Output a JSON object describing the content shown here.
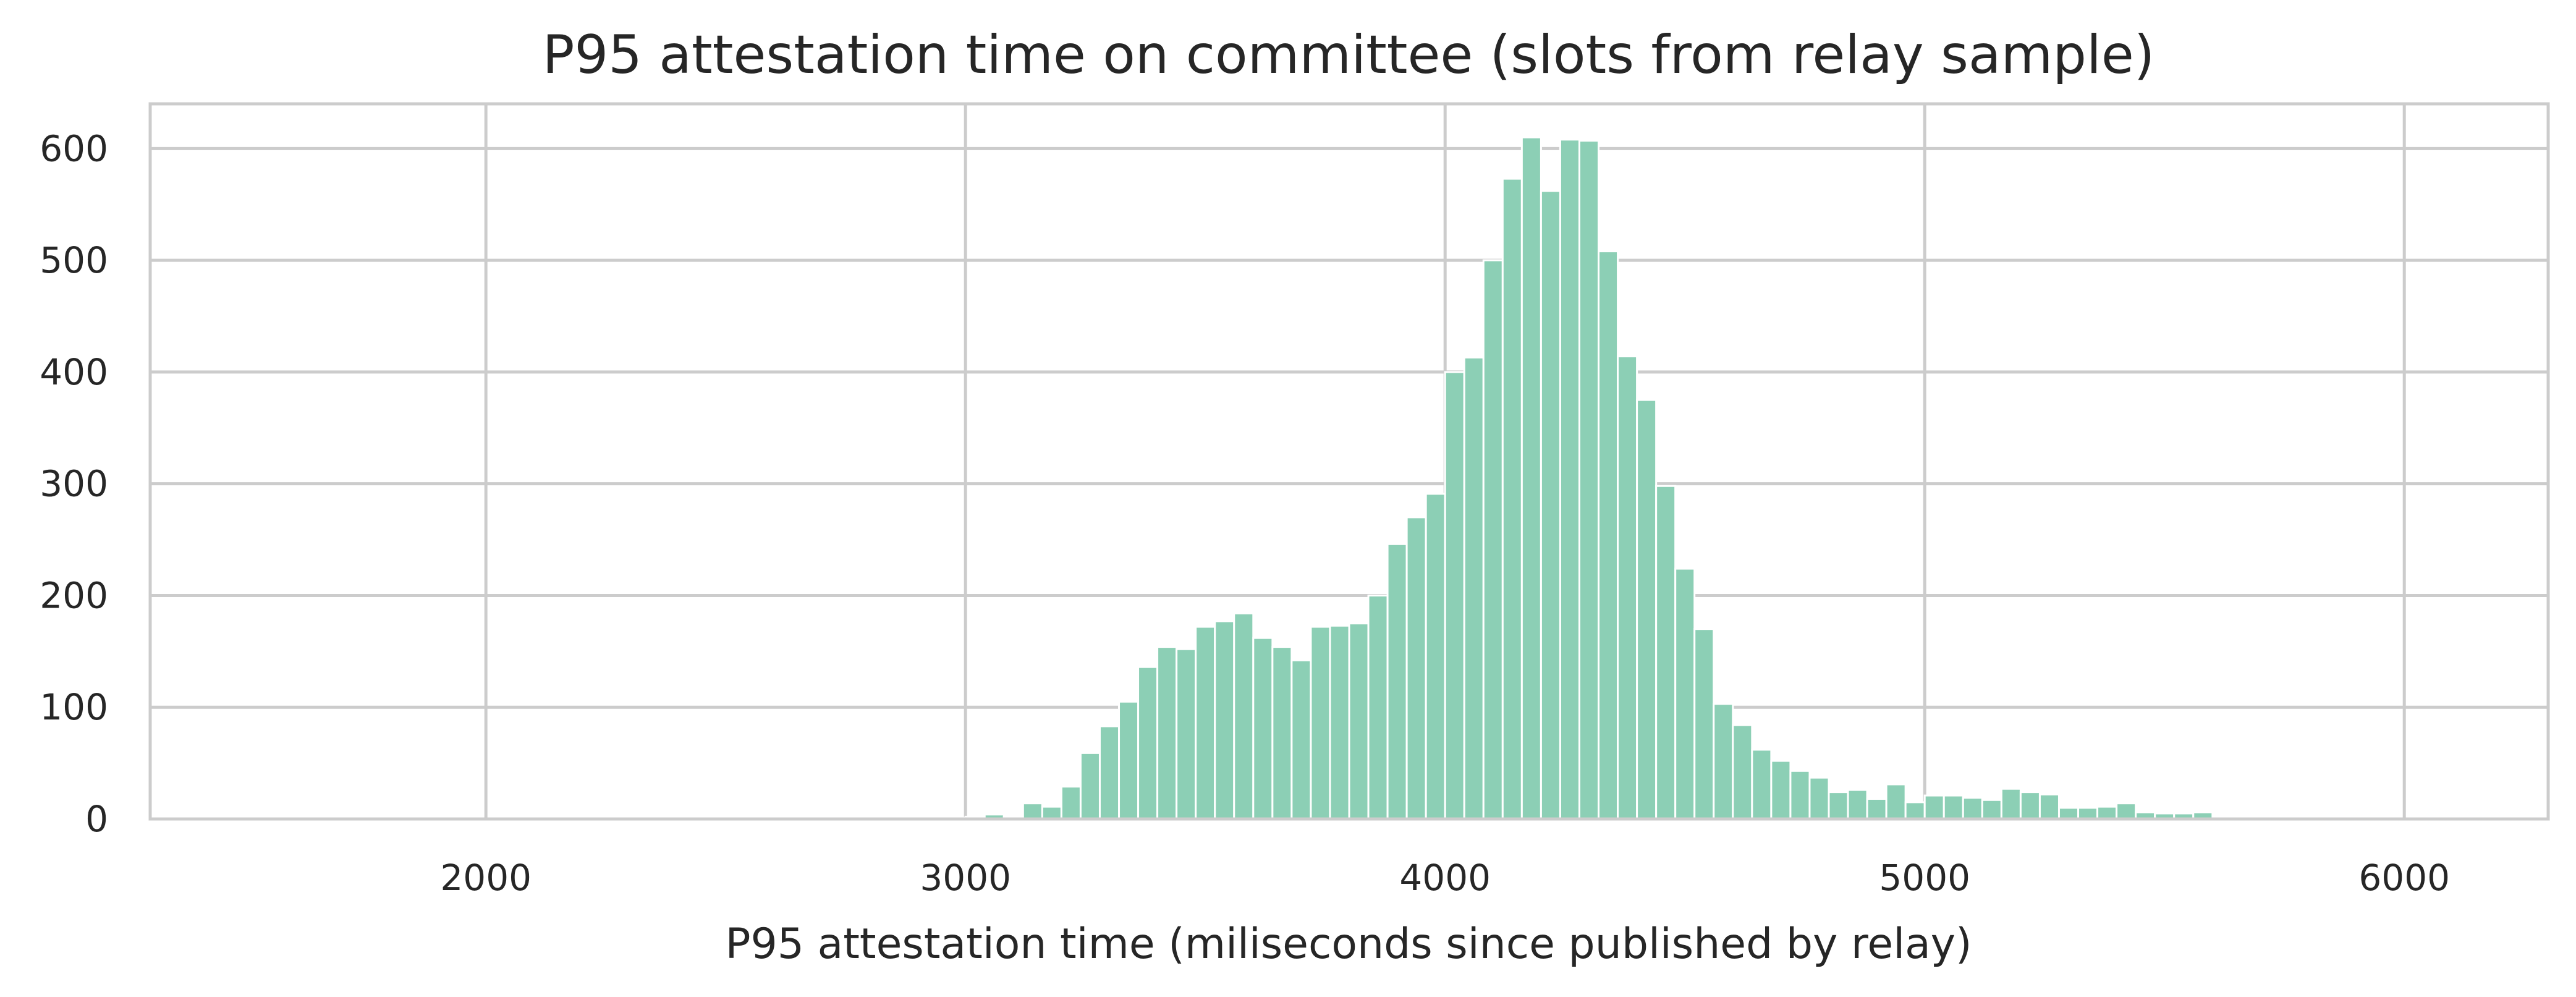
{
  "chart_data": {
    "type": "bar",
    "title": "P95 attestation time on committee (slots from relay sample)",
    "xlabel": "P95 attestation time (miliseconds since published by relay)",
    "ylabel": "",
    "xlim": [
      1300,
      6300
    ],
    "ylim": [
      0,
      640
    ],
    "x_ticks": [
      2000,
      3000,
      4000,
      5000,
      6000
    ],
    "y_ticks": [
      0,
      100,
      200,
      300,
      400,
      500,
      600
    ],
    "grid": true,
    "bar_color": "#8ccfb5",
    "bin_width": 40,
    "bins_start": 1400,
    "values": [
      1,
      0,
      0,
      0,
      0,
      0,
      0,
      0,
      0,
      0,
      0,
      0,
      0,
      0,
      0,
      0,
      0,
      0,
      0,
      0,
      0,
      0,
      0,
      0,
      0,
      0,
      0,
      0,
      0,
      0,
      0,
      0,
      0,
      0,
      0,
      0,
      0,
      0,
      2,
      1,
      2,
      4,
      2,
      14,
      11,
      29,
      59,
      83,
      105,
      136,
      154,
      152,
      172,
      177,
      184,
      162,
      154,
      142,
      172,
      173,
      175,
      200,
      246,
      270,
      291,
      400,
      413,
      500,
      573,
      610,
      562,
      608,
      607,
      508,
      414,
      375,
      298,
      224,
      170,
      103,
      84,
      62,
      52,
      43,
      37,
      24,
      26,
      18,
      31,
      15,
      21,
      21,
      19,
      17,
      27,
      24,
      22,
      10,
      10,
      11,
      14,
      6,
      5,
      5,
      6,
      0,
      1,
      0,
      0,
      0,
      0,
      0,
      0,
      0,
      0,
      0,
      0,
      0,
      0,
      0,
      0,
      0,
      0,
      0,
      0,
      0,
      0,
      0,
      0,
      0,
      0,
      0,
      0,
      0,
      0,
      0,
      0,
      0,
      0,
      0,
      0,
      0,
      0,
      0,
      0,
      0,
      0,
      0,
      0,
      0,
      0,
      0,
      0,
      0,
      0,
      0,
      0,
      0,
      0,
      0,
      0,
      0,
      0,
      0,
      0,
      0,
      0,
      0
    ]
  }
}
